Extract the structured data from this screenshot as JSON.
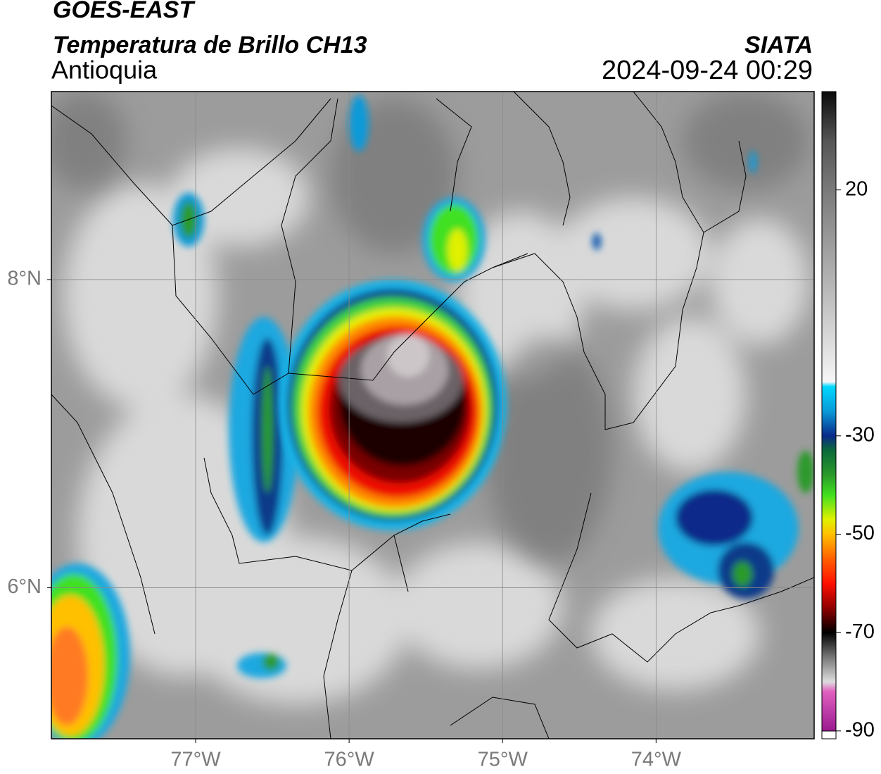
{
  "header": {
    "title": "GOES-EAST",
    "subtitle": "Temperatura de Brillo CH13",
    "region": "Antioquia",
    "source": "SIATA",
    "datetime": "2024-09-24 00:29"
  },
  "map": {
    "xlim": [
      -77.94,
      -72.97
    ],
    "ylim": [
      5.02,
      9.22
    ],
    "xticks": [
      {
        "value": -77,
        "label": "77°W"
      },
      {
        "value": -76,
        "label": "76°W"
      },
      {
        "value": -75,
        "label": "75°W"
      },
      {
        "value": -74,
        "label": "74°W"
      }
    ],
    "yticks": [
      {
        "value": 8,
        "label": "8°N"
      },
      {
        "value": 6,
        "label": "6°N"
      }
    ]
  },
  "colorbar": {
    "lim": [
      -91.6,
      40
    ],
    "ticks": [
      20,
      -30,
      -50,
      -70,
      -90
    ],
    "colormap": [
      [
        40,
        "#0a0a0a"
      ],
      [
        30,
        "#555555"
      ],
      [
        20,
        "#7a7a7a"
      ],
      [
        0,
        "#b8b8b8"
      ],
      [
        -19,
        "#f6f6f6"
      ],
      [
        -20,
        "#00d8ff"
      ],
      [
        -25,
        "#0a9ad8"
      ],
      [
        -30,
        "#0a2a8a"
      ],
      [
        -33,
        "#0a6a3a"
      ],
      [
        -38,
        "#2a9a2a"
      ],
      [
        -42,
        "#40e020"
      ],
      [
        -47,
        "#e0f000"
      ],
      [
        -50,
        "#ffc000"
      ],
      [
        -55,
        "#ff6000"
      ],
      [
        -60,
        "#ff1000"
      ],
      [
        -65,
        "#900000"
      ],
      [
        -70,
        "#000000"
      ],
      [
        -75,
        "#777777"
      ],
      [
        -80,
        "#dddddd"
      ],
      [
        -82,
        "#e060c0"
      ],
      [
        -90,
        "#9a1a90"
      ]
    ]
  }
}
